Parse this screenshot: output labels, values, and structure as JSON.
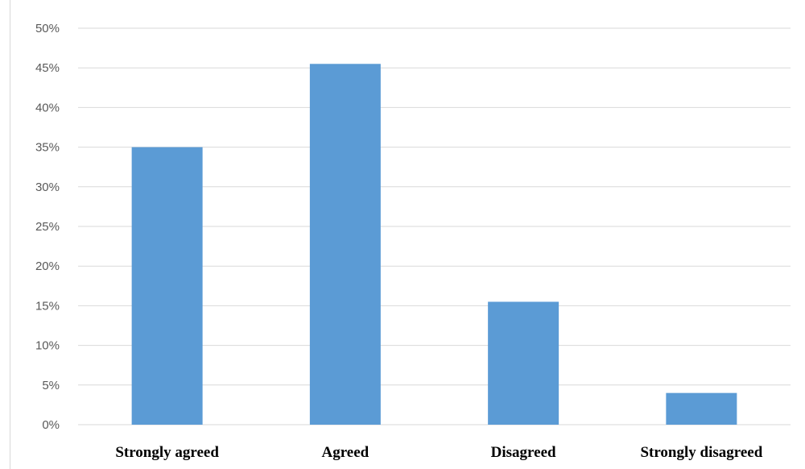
{
  "chart_data": {
    "type": "bar",
    "title": "",
    "xlabel": "",
    "ylabel": "",
    "categories": [
      "Strongly agreed",
      "Agreed",
      "Disagreed",
      "Strongly disagreed"
    ],
    "values": [
      35,
      45.5,
      15.5,
      4
    ],
    "ylim": [
      0,
      50
    ],
    "yticks": [
      0,
      5,
      10,
      15,
      20,
      25,
      30,
      35,
      40,
      45,
      50
    ],
    "ytick_labels": [
      "0%",
      "5%",
      "10%",
      "15%",
      "20%",
      "25%",
      "30%",
      "35%",
      "40%",
      "45%",
      "50%"
    ],
    "grid": true,
    "legend": "none",
    "bar_color": "#5b9bd5",
    "grid_color": "#d9d9d9"
  }
}
